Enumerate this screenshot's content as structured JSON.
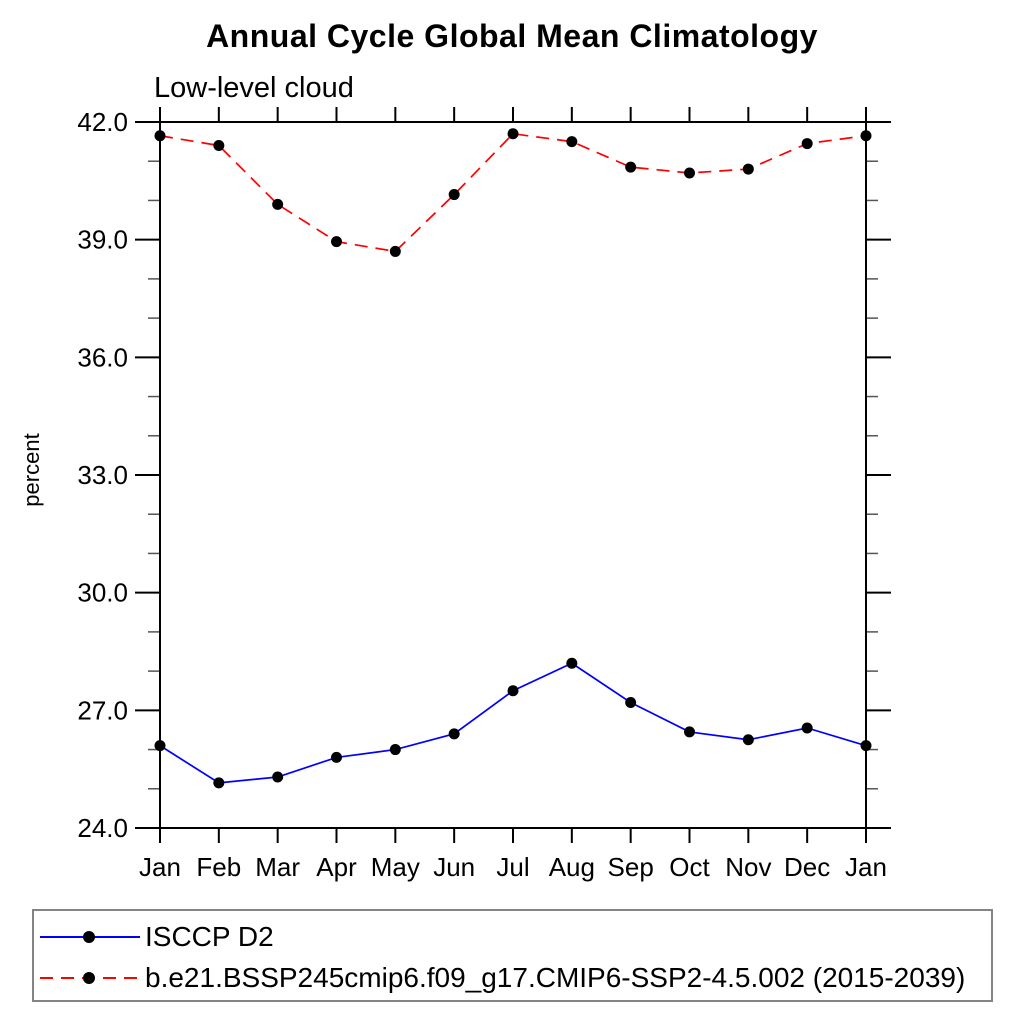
{
  "chart_data": {
    "type": "line",
    "title": "Annual Cycle Global Mean Climatology",
    "subtitle": "Low-level cloud",
    "ylabel": "percent",
    "xlabel": "",
    "categories": [
      "Jan",
      "Feb",
      "Mar",
      "Apr",
      "May",
      "Jun",
      "Jul",
      "Aug",
      "Sep",
      "Oct",
      "Nov",
      "Dec",
      "Jan"
    ],
    "ylim": [
      24.0,
      42.0
    ],
    "ytick_major": [
      24.0,
      27.0,
      30.0,
      33.0,
      36.0,
      39.0,
      42.0
    ],
    "ytick_labels": [
      "24.0",
      "27.0",
      "30.0",
      "33.0",
      "36.0",
      "39.0",
      "42.0"
    ],
    "ytick_minor_step": 1.0,
    "grid": false,
    "legend_position": "bottom",
    "axis_color": "#000000",
    "series": [
      {
        "name": "ISCCP D2",
        "color": "#0000ff",
        "style": "solid",
        "marker": "circle",
        "marker_color": "#000000",
        "values": [
          26.1,
          25.15,
          25.3,
          25.8,
          26.0,
          26.4,
          27.5,
          28.2,
          27.2,
          26.45,
          26.25,
          26.55,
          26.1
        ]
      },
      {
        "name": "b.e21.BSSP245cmip6.f09_g17.CMIP6-SSP2-4.5.002 (2015-2039)",
        "color": "#ff0000",
        "style": "dashed",
        "marker": "circle",
        "marker_color": "#000000",
        "values": [
          41.65,
          41.4,
          39.9,
          38.95,
          38.7,
          40.15,
          41.7,
          41.5,
          40.85,
          40.7,
          40.8,
          41.45,
          41.65
        ]
      }
    ]
  }
}
